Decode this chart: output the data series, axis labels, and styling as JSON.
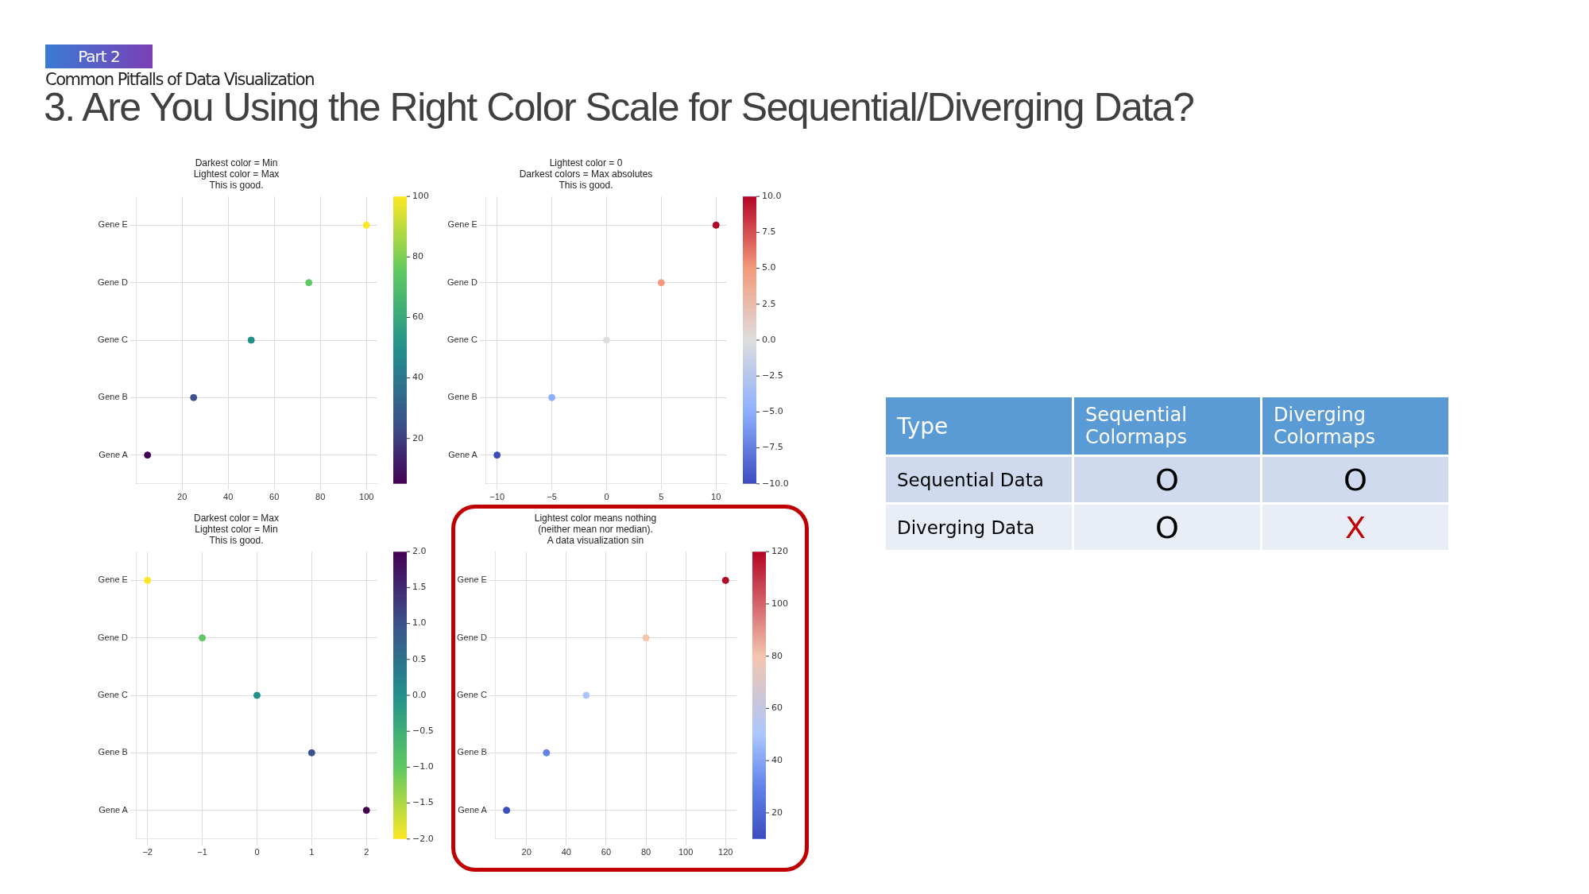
{
  "chart_data": [
    {
      "type": "scatter",
      "title": "Darkest color = Min\nLightest color = Max\nThis is good.",
      "orientation": "horizontal",
      "categories": [
        "Gene E",
        "Gene D",
        "Gene C",
        "Gene B",
        "Gene A"
      ],
      "values": [
        100,
        75,
        50,
        25,
        5
      ],
      "cvalues": [
        100,
        75,
        50,
        25,
        5
      ],
      "colors": [
        "#fde725",
        "#5ec962",
        "#21918c",
        "#3b528b",
        "#440154"
      ],
      "xlim": [
        0.25,
        104.75
      ],
      "xticks": [
        20,
        40,
        60,
        80,
        100
      ],
      "clim": [
        5,
        100
      ],
      "cticks": [
        20,
        40,
        60,
        80,
        100
      ],
      "grid": true,
      "marker": "circle",
      "legend": false
    },
    {
      "type": "scatter",
      "title": "Lightest color = 0\nDarkest colors = Max absolutes\nThis is good.",
      "orientation": "horizontal",
      "categories": [
        "Gene E",
        "Gene D",
        "Gene C",
        "Gene B",
        "Gene A"
      ],
      "values": [
        10,
        5,
        0,
        -5,
        -10
      ],
      "cvalues": [
        10,
        5,
        0,
        -5,
        -10
      ],
      "colors": [
        "#b40426",
        "#f49a7b",
        "#dddddd",
        "#8db0fe",
        "#3b4cc0"
      ],
      "xlim": [
        -11,
        11
      ],
      "xticks": [
        {
          "value": -10,
          "label": "−10"
        },
        {
          "value": -5,
          "label": "−5"
        },
        0,
        5,
        10
      ],
      "clim": [
        -10,
        10
      ],
      "cticks": [
        {
          "value": -10,
          "label": "−10.0"
        },
        {
          "value": -7.5,
          "label": "−7.5"
        },
        {
          "value": -5,
          "label": "−5.0"
        },
        {
          "value": -2.5,
          "label": "−2.5"
        },
        {
          "value": 0,
          "label": "0.0"
        },
        {
          "value": 2.5,
          "label": "2.5"
        },
        {
          "value": 5,
          "label": "5.0"
        },
        {
          "value": 7.5,
          "label": "7.5"
        },
        {
          "value": 10,
          "label": "10.0"
        }
      ],
      "grid": true,
      "marker": "circle",
      "legend": false
    },
    {
      "type": "scatter",
      "title": "Darkest color = Max\nLightest color = Min\nThis is good.",
      "orientation": "horizontal",
      "categories": [
        "Gene E",
        "Gene D",
        "Gene C",
        "Gene B",
        "Gene A"
      ],
      "values": [
        -2,
        -1,
        0,
        1,
        2
      ],
      "cvalues": [
        -2,
        -1,
        0,
        1,
        2
      ],
      "colors": [
        "#fde725",
        "#5ec962",
        "#21918c",
        "#3b528b",
        "#440154"
      ],
      "xlim": [
        -2.2,
        2.2
      ],
      "xticks": [
        {
          "value": -2,
          "label": "−2"
        },
        {
          "value": -1,
          "label": "−1"
        },
        0,
        1,
        2
      ],
      "clim": [
        -2,
        2
      ],
      "cticks": [
        {
          "value": -2,
          "label": "−2.0"
        },
        {
          "value": -1.5,
          "label": "−1.5"
        },
        {
          "value": -1,
          "label": "−1.0"
        },
        {
          "value": -0.5,
          "label": "−0.5"
        },
        {
          "value": 0,
          "label": "0.0"
        },
        {
          "value": 0.5,
          "label": "0.5"
        },
        {
          "value": 1,
          "label": "1.0"
        },
        {
          "value": 1.5,
          "label": "1.5"
        },
        {
          "value": 2,
          "label": "2.0"
        }
      ],
      "grid": true,
      "marker": "circle",
      "legend": false
    },
    {
      "type": "scatter",
      "title": "Lightest color means nothing\n(neither mean nor median).\nA data visualization sin",
      "orientation": "horizontal",
      "categories": [
        "Gene E",
        "Gene D",
        "Gene C",
        "Gene B",
        "Gene A"
      ],
      "values": [
        120,
        80,
        50,
        30,
        10
      ],
      "cvalues": [
        120,
        80,
        50,
        30,
        10
      ],
      "colors": [
        "#b40426",
        "#f4c5ad",
        "#aac7fd",
        "#6282ea",
        "#3b4cc0"
      ],
      "xlim": [
        4.5,
        125.5
      ],
      "xticks": [
        20,
        40,
        60,
        80,
        100,
        120
      ],
      "clim": [
        10,
        120
      ],
      "cticks": [
        20,
        40,
        60,
        80,
        100,
        120
      ],
      "grid": true,
      "marker": "circle",
      "legend": false
    },
    {
      "type": "other",
      "title": "3. Are You Using the Right Color Scale for Sequential/Diverging Data?",
      "subtitle": "Common Pitfalls of Data Visualization",
      "annotations": [
        "Part 2",
        "Type",
        "Sequential\nColormaps",
        "Diverging\nColormaps",
        "Sequential Data",
        "O",
        "O",
        "Diverging Data",
        "O",
        "X"
      ],
      "colors": [
        "#ffffff",
        "#ffffff",
        "#ffffff",
        "#ffffff",
        "#000000",
        "#000000",
        "#000000",
        "#000000",
        "#000000",
        "#c00000"
      ]
    }
  ]
}
